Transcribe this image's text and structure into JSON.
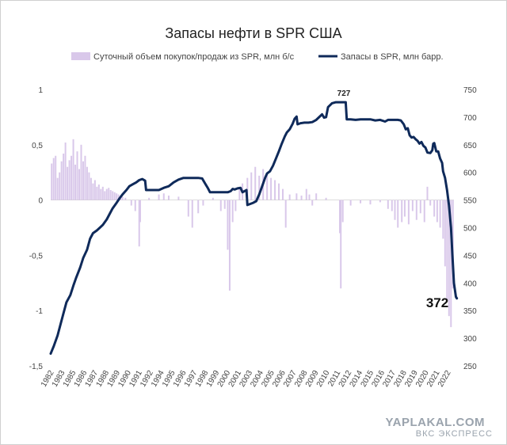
{
  "chart_data": {
    "type": "bar+line",
    "title": "Запасы нефти в SPR США",
    "legend": [
      "Суточный объем покупок/продаж из SPR, млн б/с",
      "Запасы в SPR, млн барр."
    ],
    "legend_placement": "top",
    "y_left": {
      "min": -1.5,
      "max": 1,
      "ticks": [
        "1",
        "0,5",
        "0",
        "-0,5",
        "-1",
        "-1,5"
      ],
      "tick_values": [
        1,
        0.5,
        0,
        -0.5,
        -1,
        -1.5
      ]
    },
    "y_right": {
      "min": 250,
      "max": 750,
      "ticks": [
        "750",
        "700",
        "650",
        "600",
        "550",
        "500",
        "450",
        "400",
        "350",
        "300",
        "250"
      ],
      "tick_values": [
        750,
        700,
        650,
        600,
        550,
        500,
        450,
        400,
        350,
        300,
        250
      ]
    },
    "x_range": [
      1982,
      2023
    ],
    "x_ticks": [
      "1982",
      "1983",
      "1985",
      "1986",
      "1987",
      "1988",
      "1989",
      "1990",
      "1991",
      "1992",
      "1994",
      "1995",
      "1996",
      "1997",
      "1998",
      "1999",
      "2000",
      "2001",
      "2003",
      "2004",
      "2005",
      "2006",
      "2007",
      "2008",
      "2009",
      "2010",
      "2011",
      "2012",
      "2014",
      "2015",
      "2016",
      "2017",
      "2018",
      "2019",
      "2020",
      "2021",
      "2022"
    ],
    "grid": false,
    "series": [
      {
        "name": "Суточный объем покупок/продаж из SPR, млн б/с",
        "kind": "bar",
        "axis": "left",
        "color": "#d9c8ea",
        "points": [
          [
            1982.1,
            0.33
          ],
          [
            1982.3,
            0.38
          ],
          [
            1982.5,
            0.4
          ],
          [
            1982.7,
            0.2
          ],
          [
            1982.9,
            0.25
          ],
          [
            1983.1,
            0.35
          ],
          [
            1983.3,
            0.42
          ],
          [
            1983.5,
            0.52
          ],
          [
            1983.7,
            0.3
          ],
          [
            1983.9,
            0.36
          ],
          [
            1984.1,
            0.4
          ],
          [
            1984.3,
            0.55
          ],
          [
            1984.5,
            0.32
          ],
          [
            1984.7,
            0.44
          ],
          [
            1984.9,
            0.28
          ],
          [
            1985.1,
            0.5
          ],
          [
            1985.3,
            0.35
          ],
          [
            1985.5,
            0.4
          ],
          [
            1985.7,
            0.3
          ],
          [
            1985.9,
            0.25
          ],
          [
            1986.1,
            0.2
          ],
          [
            1986.3,
            0.15
          ],
          [
            1986.5,
            0.18
          ],
          [
            1986.7,
            0.12
          ],
          [
            1986.9,
            0.14
          ],
          [
            1987.1,
            0.1
          ],
          [
            1987.3,
            0.12
          ],
          [
            1987.5,
            0.08
          ],
          [
            1987.7,
            0.1
          ],
          [
            1987.9,
            0.11
          ],
          [
            1988.1,
            0.09
          ],
          [
            1988.3,
            0.08
          ],
          [
            1988.5,
            0.07
          ],
          [
            1988.7,
            0.06
          ],
          [
            1988.9,
            0.05
          ],
          [
            1989.1,
            0.04
          ],
          [
            1989.3,
            0.03
          ],
          [
            1989.6,
            0.02
          ],
          [
            1990.2,
            -0.05
          ],
          [
            1990.6,
            -0.1
          ],
          [
            1991.0,
            -0.42
          ],
          [
            1991.1,
            -0.2
          ],
          [
            1992.0,
            0.02
          ],
          [
            1993.0,
            0.05
          ],
          [
            1993.5,
            0.06
          ],
          [
            1994.0,
            0.04
          ],
          [
            1995.0,
            0.03
          ],
          [
            1996.0,
            -0.15
          ],
          [
            1996.4,
            -0.25
          ],
          [
            1997.0,
            -0.12
          ],
          [
            1997.5,
            -0.05
          ],
          [
            1998.5,
            0.02
          ],
          [
            1999.3,
            -0.1
          ],
          [
            1999.7,
            -0.08
          ],
          [
            2000.0,
            -0.45
          ],
          [
            2000.2,
            -0.82
          ],
          [
            2000.5,
            -0.2
          ],
          [
            2000.8,
            -0.1
          ],
          [
            2001.2,
            0.1
          ],
          [
            2001.5,
            0.15
          ],
          [
            2002.0,
            0.2
          ],
          [
            2002.4,
            0.25
          ],
          [
            2002.8,
            0.3
          ],
          [
            2003.2,
            0.22
          ],
          [
            2003.6,
            0.28
          ],
          [
            2004.0,
            0.24
          ],
          [
            2004.4,
            0.2
          ],
          [
            2004.8,
            0.18
          ],
          [
            2005.2,
            0.15
          ],
          [
            2005.6,
            0.1
          ],
          [
            2005.9,
            -0.25
          ],
          [
            2006.3,
            0.05
          ],
          [
            2007.0,
            0.06
          ],
          [
            2007.5,
            0.04
          ],
          [
            2008.0,
            0.1
          ],
          [
            2008.3,
            0.05
          ],
          [
            2008.6,
            -0.05
          ],
          [
            2009.0,
            0.06
          ],
          [
            2010.0,
            0.02
          ],
          [
            2011.4,
            -0.3
          ],
          [
            2011.5,
            -0.8
          ],
          [
            2011.7,
            -0.2
          ],
          [
            2012.5,
            -0.05
          ],
          [
            2013.5,
            -0.03
          ],
          [
            2014.5,
            -0.04
          ],
          [
            2015.5,
            -0.02
          ],
          [
            2016.3,
            -0.08
          ],
          [
            2016.7,
            -0.1
          ],
          [
            2017.0,
            -0.18
          ],
          [
            2017.3,
            -0.25
          ],
          [
            2017.7,
            -0.2
          ],
          [
            2018.0,
            -0.15
          ],
          [
            2018.4,
            -0.22
          ],
          [
            2018.8,
            -0.1
          ],
          [
            2019.2,
            -0.18
          ],
          [
            2019.6,
            -0.12
          ],
          [
            2020.0,
            -0.2
          ],
          [
            2020.3,
            0.12
          ],
          [
            2020.6,
            -0.05
          ],
          [
            2021.0,
            -0.15
          ],
          [
            2021.3,
            -0.2
          ],
          [
            2021.6,
            -0.25
          ],
          [
            2021.9,
            -0.35
          ],
          [
            2022.1,
            -0.6
          ],
          [
            2022.3,
            -0.9
          ],
          [
            2022.5,
            -1.05
          ],
          [
            2022.7,
            -1.15
          ],
          [
            2022.9,
            -0.8
          ]
        ]
      },
      {
        "name": "Запасы в SPR, млн барр.",
        "kind": "line",
        "axis": "right",
        "color": "#0f2a5a",
        "points": [
          [
            1982.0,
            272
          ],
          [
            1982.3,
            285
          ],
          [
            1982.7,
            305
          ],
          [
            1983.0,
            325
          ],
          [
            1983.3,
            345
          ],
          [
            1983.6,
            365
          ],
          [
            1984.0,
            378
          ],
          [
            1984.3,
            395
          ],
          [
            1984.6,
            410
          ],
          [
            1985.0,
            428
          ],
          [
            1985.3,
            445
          ],
          [
            1985.7,
            460
          ],
          [
            1986.0,
            480
          ],
          [
            1986.3,
            490
          ],
          [
            1986.7,
            495
          ],
          [
            1987.0,
            500
          ],
          [
            1987.3,
            505
          ],
          [
            1987.7,
            515
          ],
          [
            1988.0,
            525
          ],
          [
            1988.3,
            535
          ],
          [
            1988.7,
            545
          ],
          [
            1989.0,
            553
          ],
          [
            1989.3,
            560
          ],
          [
            1989.7,
            568
          ],
          [
            1990.0,
            575
          ],
          [
            1990.3,
            578
          ],
          [
            1990.7,
            582
          ],
          [
            1991.0,
            586
          ],
          [
            1991.3,
            588
          ],
          [
            1991.6,
            585
          ],
          [
            1991.7,
            568
          ],
          [
            1992.5,
            568
          ],
          [
            1993.0,
            568
          ],
          [
            1993.5,
            572
          ],
          [
            1994.0,
            575
          ],
          [
            1994.5,
            582
          ],
          [
            1995.0,
            587
          ],
          [
            1995.5,
            590
          ],
          [
            1996.0,
            590
          ],
          [
            1996.5,
            590
          ],
          [
            1997.0,
            590
          ],
          [
            1997.4,
            589
          ],
          [
            1997.7,
            580
          ],
          [
            1998.0,
            571
          ],
          [
            1998.2,
            564
          ],
          [
            1998.7,
            564
          ],
          [
            1999.0,
            564
          ],
          [
            1999.5,
            564
          ],
          [
            2000.0,
            564
          ],
          [
            2000.3,
            566
          ],
          [
            2000.5,
            570
          ],
          [
            2000.7,
            569
          ],
          [
            2001.0,
            571
          ],
          [
            2001.3,
            572
          ],
          [
            2001.5,
            564
          ],
          [
            2001.7,
            566
          ],
          [
            2001.9,
            568
          ],
          [
            2002.0,
            541
          ],
          [
            2002.3,
            543
          ],
          [
            2002.6,
            545
          ],
          [
            2002.9,
            548
          ],
          [
            2003.0,
            552
          ],
          [
            2003.2,
            560
          ],
          [
            2003.5,
            575
          ],
          [
            2003.8,
            590
          ],
          [
            2004.0,
            598
          ],
          [
            2004.3,
            602
          ],
          [
            2004.6,
            612
          ],
          [
            2004.9,
            625
          ],
          [
            2005.2,
            638
          ],
          [
            2005.5,
            652
          ],
          [
            2005.8,
            665
          ],
          [
            2006.0,
            672
          ],
          [
            2006.3,
            678
          ],
          [
            2006.6,
            688
          ],
          [
            2006.8,
            697
          ],
          [
            2007.0,
            701
          ],
          [
            2007.1,
            687
          ],
          [
            2007.4,
            689
          ],
          [
            2007.8,
            690
          ],
          [
            2008.2,
            690
          ],
          [
            2008.6,
            691
          ],
          [
            2009.0,
            695
          ],
          [
            2009.3,
            700
          ],
          [
            2009.6,
            705
          ],
          [
            2009.8,
            699
          ],
          [
            2010.0,
            700
          ],
          [
            2010.2,
            718
          ],
          [
            2010.6,
            725
          ],
          [
            2011.0,
            727
          ],
          [
            2011.5,
            727
          ],
          [
            2011.9,
            727
          ],
          [
            2012.0,
            727
          ],
          [
            2012.1,
            696
          ],
          [
            2012.5,
            696
          ],
          [
            2013.0,
            695
          ],
          [
            2013.5,
            696
          ],
          [
            2014.0,
            696
          ],
          [
            2014.5,
            696
          ],
          [
            2015.0,
            694
          ],
          [
            2015.5,
            695
          ],
          [
            2016.0,
            692
          ],
          [
            2016.3,
            695
          ],
          [
            2016.6,
            695
          ],
          [
            2017.0,
            695
          ],
          [
            2017.3,
            695
          ],
          [
            2017.6,
            694
          ],
          [
            2017.9,
            687
          ],
          [
            2018.1,
            678
          ],
          [
            2018.3,
            680
          ],
          [
            2018.5,
            667
          ],
          [
            2018.7,
            663
          ],
          [
            2018.9,
            664
          ],
          [
            2019.1,
            660
          ],
          [
            2019.3,
            657
          ],
          [
            2019.5,
            652
          ],
          [
            2019.7,
            655
          ],
          [
            2019.9,
            648
          ],
          [
            2020.1,
            645
          ],
          [
            2020.3,
            636
          ],
          [
            2020.6,
            635
          ],
          [
            2020.8,
            640
          ],
          [
            2020.9,
            652
          ],
          [
            2021.0,
            653
          ],
          [
            2021.2,
            638
          ],
          [
            2021.4,
            638
          ],
          [
            2021.6,
            625
          ],
          [
            2021.8,
            617
          ],
          [
            2021.9,
            602
          ],
          [
            2022.1,
            590
          ],
          [
            2022.3,
            568
          ],
          [
            2022.5,
            540
          ],
          [
            2022.7,
            500
          ],
          [
            2022.85,
            450
          ],
          [
            2023.0,
            400
          ],
          [
            2023.2,
            375
          ],
          [
            2023.3,
            372
          ]
        ]
      }
    ],
    "annotations": [
      {
        "text": "727",
        "x": 2011.5,
        "y": 727,
        "axis": "right"
      },
      {
        "text": "372",
        "x": 2023.3,
        "y": 372,
        "axis": "right"
      }
    ]
  },
  "watermark": {
    "line1": "YAPLAKAL.COM",
    "line2": "ВКС ЭКСПРЕСС"
  }
}
